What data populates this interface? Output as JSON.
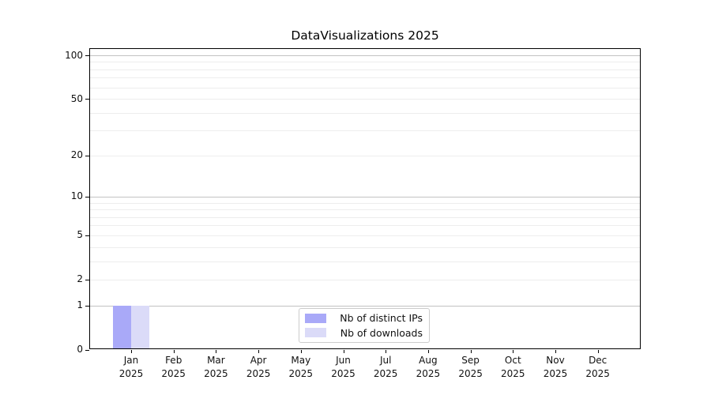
{
  "chart_data": {
    "type": "bar",
    "title": "DataVisualizations 2025",
    "categories": [
      "Jan",
      "Feb",
      "Mar",
      "Apr",
      "May",
      "Jun",
      "Jul",
      "Aug",
      "Sep",
      "Oct",
      "Nov",
      "Dec"
    ],
    "x_tick_second_line": "2025",
    "series": [
      {
        "name": "Nb of distinct IPs",
        "color": "#a9a9f8",
        "values": [
          1,
          0,
          0,
          0,
          0,
          0,
          0,
          0,
          0,
          0,
          0,
          0
        ]
      },
      {
        "name": "Nb of downloads",
        "color": "#dbdbf8",
        "values": [
          1,
          0,
          0,
          0,
          0,
          0,
          0,
          0,
          0,
          0,
          0,
          0
        ]
      }
    ],
    "y_axis": {
      "scale": "log1p",
      "tick_values": [
        0,
        1,
        2,
        5,
        10,
        20,
        50,
        100
      ],
      "tick_labels": [
        "0",
        "1",
        "2",
        "5",
        "10",
        "20",
        "50",
        "100"
      ],
      "major_gridline_values": [
        1,
        10,
        100
      ],
      "minor_gridline_values": [
        2,
        3,
        4,
        5,
        6,
        7,
        8,
        9,
        20,
        30,
        40,
        50,
        60,
        70,
        80,
        90
      ],
      "ylim": [
        0,
        112
      ]
    },
    "xlabel": "",
    "ylabel": "",
    "grid": true,
    "legend": {
      "position": "lower center",
      "entries": [
        "Nb of distinct IPs",
        "Nb of downloads"
      ]
    },
    "colors": {
      "bar_distinct_ips": "#a9a9f8",
      "bar_downloads": "#dbdbf8",
      "major_grid": "#c2c2c2",
      "minor_grid": "#ededed",
      "spine": "#000000",
      "text": "#111111",
      "background": "#ffffff"
    }
  }
}
